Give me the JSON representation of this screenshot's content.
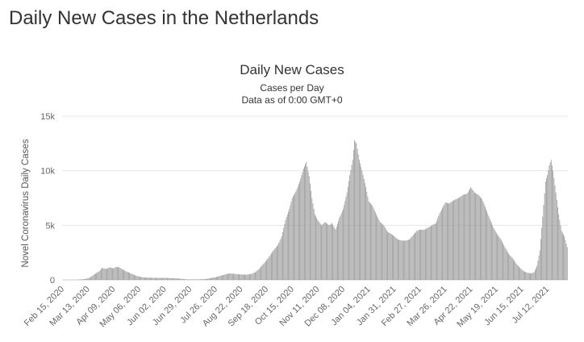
{
  "page": {
    "title": "Daily New Cases in the Netherlands"
  },
  "chart_data": {
    "type": "bar",
    "title": "Daily New Cases",
    "subtitles": [
      "Cases per Day",
      "Data as of 0:00 GMT+0"
    ],
    "xlabel": "",
    "ylabel": "Novel Coronavirus Daily Cases",
    "ylim": [
      0,
      15000
    ],
    "yticks": [
      {
        "value": 0,
        "label": "0"
      },
      {
        "value": 5000,
        "label": "5k"
      },
      {
        "value": 10000,
        "label": "10k"
      },
      {
        "value": 15000,
        "label": "15k"
      }
    ],
    "x_start": "Feb 15, 2020",
    "x_end": "Aug 02, 2021",
    "xticks": [
      "Feb 15, 2020",
      "Mar 13, 2020",
      "Apr 09, 2020",
      "May 06, 2020",
      "Jun 02, 2020",
      "Jun 29, 2020",
      "Jul 26, 2020",
      "Aug 22, 2020",
      "Sep 18, 2020",
      "Oct 15, 2020",
      "Nov 11, 2020",
      "Dec 08, 2020",
      "Jan 04, 2021",
      "Jan 31, 2021",
      "Feb 27, 2021",
      "Mar 26, 2021",
      "Apr 22, 2021",
      "May 19, 2021",
      "Jun 15, 2021",
      "Jul 12, 2021"
    ],
    "grid": true,
    "legend": "none",
    "bar_color": "#999999",
    "series": [
      {
        "points": [
          [
            "Feb 15, 2020",
            0
          ],
          [
            "Mar 01, 2020",
            5
          ],
          [
            "Mar 10, 2020",
            80
          ],
          [
            "Mar 15, 2020",
            200
          ],
          [
            "Mar 20, 2020",
            530
          ],
          [
            "Mar 25, 2020",
            800
          ],
          [
            "Mar 28, 2020",
            1100
          ],
          [
            "Apr 01, 2020",
            1000
          ],
          [
            "Apr 05, 2020",
            1150
          ],
          [
            "Apr 09, 2020",
            1050
          ],
          [
            "Apr 12, 2020",
            1200
          ],
          [
            "Apr 15, 2020",
            1150
          ],
          [
            "Apr 18, 2020",
            1000
          ],
          [
            "Apr 22, 2020",
            800
          ],
          [
            "Apr 26, 2020",
            650
          ],
          [
            "May 01, 2020",
            450
          ],
          [
            "May 06, 2020",
            300
          ],
          [
            "May 12, 2020",
            220
          ],
          [
            "May 20, 2020",
            200
          ],
          [
            "May 27, 2020",
            180
          ],
          [
            "Jun 02, 2020",
            190
          ],
          [
            "Jun 10, 2020",
            160
          ],
          [
            "Jun 18, 2020",
            120
          ],
          [
            "Jun 24, 2020",
            60
          ],
          [
            "Jun 29, 2020",
            40
          ],
          [
            "Jul 08, 2020",
            50
          ],
          [
            "Jul 15, 2020",
            80
          ],
          [
            "Jul 20, 2020",
            150
          ],
          [
            "Jul 26, 2020",
            250
          ],
          [
            "Aug 01, 2020",
            400
          ],
          [
            "Aug 05, 2020",
            500
          ],
          [
            "Aug 10, 2020",
            600
          ],
          [
            "Aug 15, 2020",
            550
          ],
          [
            "Aug 22, 2020",
            500
          ],
          [
            "Aug 28, 2020",
            480
          ],
          [
            "Sep 02, 2020",
            550
          ],
          [
            "Sep 06, 2020",
            700
          ],
          [
            "Sep 10, 2020",
            1000
          ],
          [
            "Sep 14, 2020",
            1400
          ],
          [
            "Sep 18, 2020",
            1800
          ],
          [
            "Sep 22, 2020",
            2300
          ],
          [
            "Sep 26, 2020",
            2800
          ],
          [
            "Sep 30, 2020",
            3200
          ],
          [
            "Oct 04, 2020",
            4000
          ],
          [
            "Oct 08, 2020",
            5500
          ],
          [
            "Oct 12, 2020",
            6500
          ],
          [
            "Oct 15, 2020",
            7500
          ],
          [
            "Oct 19, 2020",
            8100
          ],
          [
            "Oct 23, 2020",
            9000
          ],
          [
            "Oct 27, 2020",
            10200
          ],
          [
            "Oct 30, 2020",
            10800
          ],
          [
            "Nov 02, 2020",
            9500
          ],
          [
            "Nov 05, 2020",
            7500
          ],
          [
            "Nov 08, 2020",
            6000
          ],
          [
            "Nov 11, 2020",
            5500
          ],
          [
            "Nov 15, 2020",
            5000
          ],
          [
            "Nov 19, 2020",
            5300
          ],
          [
            "Nov 23, 2020",
            5000
          ],
          [
            "Nov 26, 2020",
            5200
          ],
          [
            "Nov 30, 2020",
            4600
          ],
          [
            "Dec 04, 2020",
            5700
          ],
          [
            "Dec 08, 2020",
            6500
          ],
          [
            "Dec 12, 2020",
            8000
          ],
          [
            "Dec 15, 2020",
            9600
          ],
          [
            "Dec 18, 2020",
            11000
          ],
          [
            "Dec 20, 2020",
            12800
          ],
          [
            "Dec 22, 2020",
            12500
          ],
          [
            "Dec 25, 2020",
            11000
          ],
          [
            "Dec 28, 2020",
            10000
          ],
          [
            "Jan 01, 2021",
            8500
          ],
          [
            "Jan 04, 2021",
            7200
          ],
          [
            "Jan 08, 2021",
            6800
          ],
          [
            "Jan 12, 2021",
            6000
          ],
          [
            "Jan 16, 2021",
            5300
          ],
          [
            "Jan 20, 2021",
            5000
          ],
          [
            "Jan 24, 2021",
            4400
          ],
          [
            "Jan 28, 2021",
            4200
          ],
          [
            "Jan 31, 2021",
            4000
          ],
          [
            "Feb 04, 2021",
            3700
          ],
          [
            "Feb 08, 2021",
            3600
          ],
          [
            "Feb 12, 2021",
            3600
          ],
          [
            "Feb 16, 2021",
            3700
          ],
          [
            "Feb 20, 2021",
            4100
          ],
          [
            "Feb 24, 2021",
            4500
          ],
          [
            "Feb 27, 2021",
            4600
          ],
          [
            "Mar 04, 2021",
            4600
          ],
          [
            "Mar 10, 2021",
            4900
          ],
          [
            "Mar 16, 2021",
            5200
          ],
          [
            "Mar 20, 2021",
            6100
          ],
          [
            "Mar 26, 2021",
            7100
          ],
          [
            "Mar 30, 2021",
            7000
          ],
          [
            "Apr 04, 2021",
            7300
          ],
          [
            "Apr 09, 2021",
            7500
          ],
          [
            "Apr 14, 2021",
            7800
          ],
          [
            "Apr 18, 2021",
            7900
          ],
          [
            "Apr 22, 2021",
            8500
          ],
          [
            "Apr 26, 2021",
            8000
          ],
          [
            "Apr 30, 2021",
            7800
          ],
          [
            "May 04, 2021",
            7400
          ],
          [
            "May 08, 2021",
            6500
          ],
          [
            "May 12, 2021",
            5600
          ],
          [
            "May 16, 2021",
            4800
          ],
          [
            "May 19, 2021",
            4300
          ],
          [
            "May 24, 2021",
            3700
          ],
          [
            "May 28, 2021",
            3000
          ],
          [
            "Jun 01, 2021",
            2400
          ],
          [
            "Jun 05, 2021",
            2000
          ],
          [
            "Jun 09, 2021",
            1500
          ],
          [
            "Jun 13, 2021",
            1100
          ],
          [
            "Jun 17, 2021",
            800
          ],
          [
            "Jun 21, 2021",
            650
          ],
          [
            "Jun 25, 2021",
            600
          ],
          [
            "Jun 28, 2021",
            700
          ],
          [
            "Jul 01, 2021",
            1300
          ],
          [
            "Jul 04, 2021",
            2700
          ],
          [
            "Jul 07, 2021",
            5800
          ],
          [
            "Jul 10, 2021",
            9000
          ],
          [
            "Jul 12, 2021",
            9600
          ],
          [
            "Jul 14, 2021",
            10500
          ],
          [
            "Jul 16, 2021",
            11000
          ],
          [
            "Jul 18, 2021",
            10000
          ],
          [
            "Jul 21, 2021",
            8000
          ],
          [
            "Jul 24, 2021",
            6000
          ],
          [
            "Jul 27, 2021",
            4500
          ],
          [
            "Jul 30, 2021",
            4000
          ],
          [
            "Aug 02, 2021",
            3000
          ]
        ]
      }
    ]
  }
}
